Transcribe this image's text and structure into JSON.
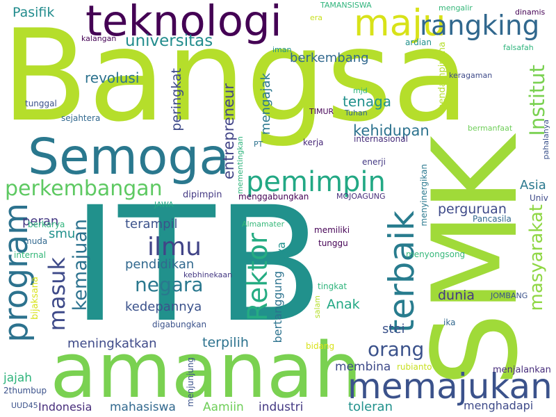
{
  "words": [
    {
      "text": "Bangsa",
      "color": "#b5de2b"
    },
    {
      "text": "ITB",
      "color": "#21918c"
    },
    {
      "text": "SMK",
      "color": "#a0da39"
    },
    {
      "text": "amanah",
      "color": "#7ad151"
    },
    {
      "text": "teknologi",
      "color": "#440154"
    },
    {
      "text": "Semoga",
      "color": "#2a788e"
    },
    {
      "text": "memajukan",
      "color": "#3b528b"
    },
    {
      "text": "maju",
      "color": "#d8e219"
    },
    {
      "text": "rangking",
      "color": "#31688e"
    },
    {
      "text": "program",
      "color": "#2c728e"
    },
    {
      "text": "terbaik",
      "color": "#287c8e"
    },
    {
      "text": "pemimpin",
      "color": "#22a884"
    },
    {
      "text": "perkembangan",
      "color": "#5ec962"
    },
    {
      "text": "Rektor",
      "color": "#25ac82"
    },
    {
      "text": "masuk",
      "color": "#3e4a89"
    },
    {
      "text": "kemajuan",
      "color": "#2c728e"
    },
    {
      "text": "ilmu",
      "color": "#414487"
    },
    {
      "text": "negara",
      "color": "#2a788e"
    },
    {
      "text": "universitas",
      "color": "#228c8d"
    },
    {
      "text": "Institut",
      "color": "#7ad151"
    },
    {
      "text": "masyarakat",
      "color": "#8fd744"
    },
    {
      "text": "orang",
      "color": "#3b528b"
    },
    {
      "text": "berkembang",
      "color": "#31688e"
    },
    {
      "text": "Pasifik",
      "color": "#228c8d"
    },
    {
      "text": "revolusi",
      "color": "#2c728e"
    },
    {
      "text": "peringkat",
      "color": "#3e4a89"
    },
    {
      "text": "entrepreneur",
      "color": "#414487"
    },
    {
      "text": "mengajak",
      "color": "#2a788e"
    },
    {
      "text": "tenaga",
      "color": "#21918c"
    },
    {
      "text": "kehidupan",
      "color": "#2c728e"
    },
    {
      "text": "Asia",
      "color": "#2a788e"
    },
    {
      "text": "perguruan",
      "color": "#3e4a89"
    },
    {
      "text": "peran",
      "color": "#443983"
    },
    {
      "text": "smu",
      "color": "#21918c"
    },
    {
      "text": "terampil",
      "color": "#3b528b"
    },
    {
      "text": "pendidikan",
      "color": "#31688e"
    },
    {
      "text": "kedepannya",
      "color": "#3b528b"
    },
    {
      "text": "meningkatkan",
      "color": "#3e4a89"
    },
    {
      "text": "terpilih",
      "color": "#2c728e"
    },
    {
      "text": "Anak",
      "color": "#22a884"
    },
    {
      "text": "dunia",
      "color": "#443983"
    },
    {
      "text": "stei",
      "color": "#3b528b"
    },
    {
      "text": "jaya",
      "color": "#21918c"
    },
    {
      "text": "bertanggung",
      "color": "#2c728e"
    },
    {
      "text": "membina",
      "color": "#3e4a89"
    },
    {
      "text": "jajah",
      "color": "#2fb47c"
    },
    {
      "text": "mahasiswa",
      "color": "#31688e"
    },
    {
      "text": "Aamiin",
      "color": "#6ece58"
    },
    {
      "text": "industri",
      "color": "#443983"
    },
    {
      "text": "toleran",
      "color": "#21918c"
    },
    {
      "text": "menghadapi",
      "color": "#3e4a89"
    },
    {
      "text": "Indonesia",
      "color": "#472d7b"
    },
    {
      "text": "UUD45",
      "color": "#3b528b"
    },
    {
      "text": "2thumbup",
      "color": "#3b528b"
    },
    {
      "text": "menjunjung",
      "color": "#3b528b"
    },
    {
      "text": "menjalankan",
      "color": "#472d7b"
    },
    {
      "text": "rubianto",
      "color": "#c8e020"
    },
    {
      "text": "bidang",
      "color": "#d8e219"
    },
    {
      "text": "ika",
      "color": "#31688e"
    },
    {
      "text": "salam",
      "color": "#b5de2b"
    },
    {
      "text": "tingkat",
      "color": "#2fb47c"
    },
    {
      "text": "JOMBANG",
      "color": "#3b528b"
    },
    {
      "text": "menyongsong",
      "color": "#35b779"
    },
    {
      "text": "tunggu",
      "color": "#440154"
    },
    {
      "text": "memiliki",
      "color": "#440154"
    },
    {
      "text": "digabungkan",
      "color": "#3b528b"
    },
    {
      "text": "kebhinekaan",
      "color": "#443983"
    },
    {
      "text": "internal",
      "color": "#35b779"
    },
    {
      "text": "bijaksana",
      "color": "#d8e219"
    },
    {
      "text": "muda",
      "color": "#31688e"
    },
    {
      "text": "berkarya",
      "color": "#2fb47c"
    },
    {
      "text": "Almamater",
      "color": "#35b779"
    },
    {
      "text": "Pancasila",
      "color": "#31688e"
    },
    {
      "text": "Univ",
      "color": "#3e4a89"
    },
    {
      "text": "menyinergikan",
      "color": "#2a788e"
    },
    {
      "text": "MOJOAGUNG",
      "color": "#472d7b"
    },
    {
      "text": "menggabungkan",
      "color": "#440154"
    },
    {
      "text": "JAWA",
      "color": "#22a884"
    },
    {
      "text": "dipimpin",
      "color": "#443983"
    },
    {
      "text": "mementingkan",
      "color": "#2fb47c"
    },
    {
      "text": "PT",
      "color": "#2c728e"
    },
    {
      "text": "enerji",
      "color": "#443983"
    },
    {
      "text": "kerja",
      "color": "#482878"
    },
    {
      "text": "internasional",
      "color": "#472d7b"
    },
    {
      "text": "bermanfaat",
      "color": "#6ece58"
    },
    {
      "text": "pahalanya",
      "color": "#3b528b"
    },
    {
      "text": "pendampinhna",
      "color": "#b5de2b"
    },
    {
      "text": "Tuhan",
      "color": "#31688e"
    },
    {
      "text": "TIMUR",
      "color": "#440154"
    },
    {
      "text": "mjd",
      "color": "#2fb47c"
    },
    {
      "text": "keragaman",
      "color": "#3e4a89"
    },
    {
      "text": "iman",
      "color": "#21918c"
    },
    {
      "text": "ardian",
      "color": "#21918c"
    },
    {
      "text": "falsafah",
      "color": "#2fb47c"
    },
    {
      "text": "kalangan",
      "color": "#440154"
    },
    {
      "text": "TAMANSISWA",
      "color": "#2fb47c"
    },
    {
      "text": "era",
      "color": "#c8e020"
    },
    {
      "text": "mengalir",
      "color": "#35b779"
    },
    {
      "text": "dinamis",
      "color": "#440154"
    },
    {
      "text": "tunggal",
      "color": "#3b528b"
    },
    {
      "text": "sejahtera",
      "color": "#31688e"
    }
  ]
}
